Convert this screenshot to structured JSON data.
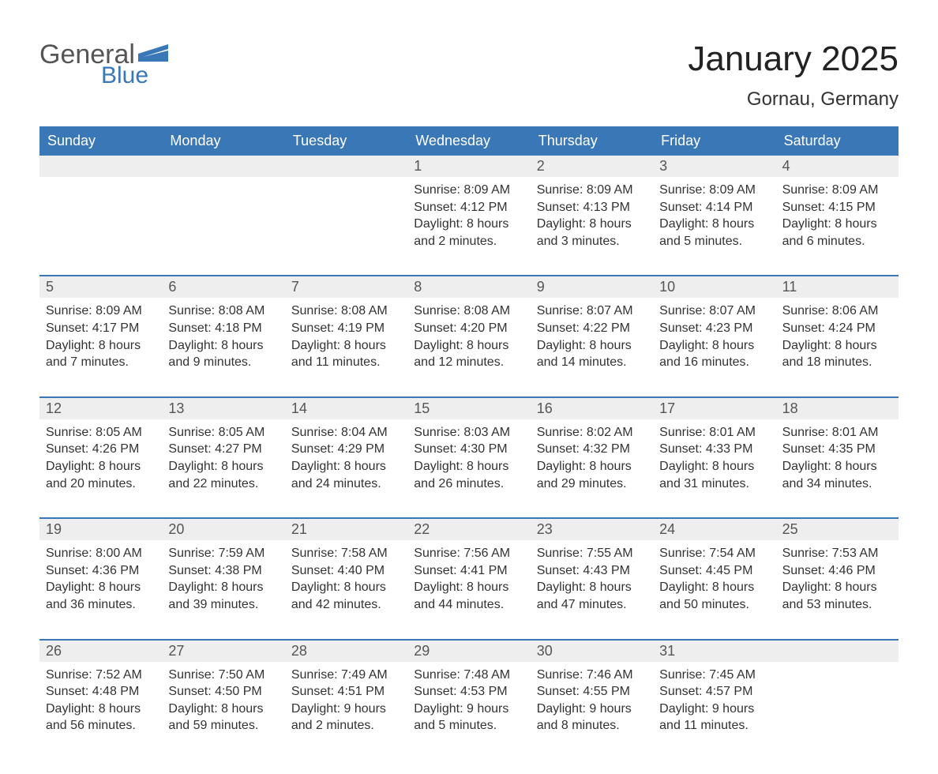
{
  "logo": {
    "word1": "General",
    "word2": "Blue",
    "shape_color": "#3a77b7",
    "text_color_general": "#555555",
    "text_color_blue": "#3a77b7"
  },
  "title": "January 2025",
  "location": "Gornau, Germany",
  "colors": {
    "header_bg": "#3a77b7",
    "header_text": "#ffffff",
    "daynum_bg": "#eeeeee",
    "body_text": "#333333",
    "page_bg": "#ffffff",
    "week_border": "#3a77b7"
  },
  "typography": {
    "title_fontsize": 44,
    "location_fontsize": 24,
    "header_fontsize": 18,
    "daynum_fontsize": 18,
    "body_fontsize": 16
  },
  "days_of_week": [
    "Sunday",
    "Monday",
    "Tuesday",
    "Wednesday",
    "Thursday",
    "Friday",
    "Saturday"
  ],
  "weeks": [
    [
      {
        "empty": true
      },
      {
        "empty": true
      },
      {
        "empty": true
      },
      {
        "num": "1",
        "sunrise": "Sunrise: 8:09 AM",
        "sunset": "Sunset: 4:12 PM",
        "daylight1": "Daylight: 8 hours",
        "daylight2": "and 2 minutes."
      },
      {
        "num": "2",
        "sunrise": "Sunrise: 8:09 AM",
        "sunset": "Sunset: 4:13 PM",
        "daylight1": "Daylight: 8 hours",
        "daylight2": "and 3 minutes."
      },
      {
        "num": "3",
        "sunrise": "Sunrise: 8:09 AM",
        "sunset": "Sunset: 4:14 PM",
        "daylight1": "Daylight: 8 hours",
        "daylight2": "and 5 minutes."
      },
      {
        "num": "4",
        "sunrise": "Sunrise: 8:09 AM",
        "sunset": "Sunset: 4:15 PM",
        "daylight1": "Daylight: 8 hours",
        "daylight2": "and 6 minutes."
      }
    ],
    [
      {
        "num": "5",
        "sunrise": "Sunrise: 8:09 AM",
        "sunset": "Sunset: 4:17 PM",
        "daylight1": "Daylight: 8 hours",
        "daylight2": "and 7 minutes."
      },
      {
        "num": "6",
        "sunrise": "Sunrise: 8:08 AM",
        "sunset": "Sunset: 4:18 PM",
        "daylight1": "Daylight: 8 hours",
        "daylight2": "and 9 minutes."
      },
      {
        "num": "7",
        "sunrise": "Sunrise: 8:08 AM",
        "sunset": "Sunset: 4:19 PM",
        "daylight1": "Daylight: 8 hours",
        "daylight2": "and 11 minutes."
      },
      {
        "num": "8",
        "sunrise": "Sunrise: 8:08 AM",
        "sunset": "Sunset: 4:20 PM",
        "daylight1": "Daylight: 8 hours",
        "daylight2": "and 12 minutes."
      },
      {
        "num": "9",
        "sunrise": "Sunrise: 8:07 AM",
        "sunset": "Sunset: 4:22 PM",
        "daylight1": "Daylight: 8 hours",
        "daylight2": "and 14 minutes."
      },
      {
        "num": "10",
        "sunrise": "Sunrise: 8:07 AM",
        "sunset": "Sunset: 4:23 PM",
        "daylight1": "Daylight: 8 hours",
        "daylight2": "and 16 minutes."
      },
      {
        "num": "11",
        "sunrise": "Sunrise: 8:06 AM",
        "sunset": "Sunset: 4:24 PM",
        "daylight1": "Daylight: 8 hours",
        "daylight2": "and 18 minutes."
      }
    ],
    [
      {
        "num": "12",
        "sunrise": "Sunrise: 8:05 AM",
        "sunset": "Sunset: 4:26 PM",
        "daylight1": "Daylight: 8 hours",
        "daylight2": "and 20 minutes."
      },
      {
        "num": "13",
        "sunrise": "Sunrise: 8:05 AM",
        "sunset": "Sunset: 4:27 PM",
        "daylight1": "Daylight: 8 hours",
        "daylight2": "and 22 minutes."
      },
      {
        "num": "14",
        "sunrise": "Sunrise: 8:04 AM",
        "sunset": "Sunset: 4:29 PM",
        "daylight1": "Daylight: 8 hours",
        "daylight2": "and 24 minutes."
      },
      {
        "num": "15",
        "sunrise": "Sunrise: 8:03 AM",
        "sunset": "Sunset: 4:30 PM",
        "daylight1": "Daylight: 8 hours",
        "daylight2": "and 26 minutes."
      },
      {
        "num": "16",
        "sunrise": "Sunrise: 8:02 AM",
        "sunset": "Sunset: 4:32 PM",
        "daylight1": "Daylight: 8 hours",
        "daylight2": "and 29 minutes."
      },
      {
        "num": "17",
        "sunrise": "Sunrise: 8:01 AM",
        "sunset": "Sunset: 4:33 PM",
        "daylight1": "Daylight: 8 hours",
        "daylight2": "and 31 minutes."
      },
      {
        "num": "18",
        "sunrise": "Sunrise: 8:01 AM",
        "sunset": "Sunset: 4:35 PM",
        "daylight1": "Daylight: 8 hours",
        "daylight2": "and 34 minutes."
      }
    ],
    [
      {
        "num": "19",
        "sunrise": "Sunrise: 8:00 AM",
        "sunset": "Sunset: 4:36 PM",
        "daylight1": "Daylight: 8 hours",
        "daylight2": "and 36 minutes."
      },
      {
        "num": "20",
        "sunrise": "Sunrise: 7:59 AM",
        "sunset": "Sunset: 4:38 PM",
        "daylight1": "Daylight: 8 hours",
        "daylight2": "and 39 minutes."
      },
      {
        "num": "21",
        "sunrise": "Sunrise: 7:58 AM",
        "sunset": "Sunset: 4:40 PM",
        "daylight1": "Daylight: 8 hours",
        "daylight2": "and 42 minutes."
      },
      {
        "num": "22",
        "sunrise": "Sunrise: 7:56 AM",
        "sunset": "Sunset: 4:41 PM",
        "daylight1": "Daylight: 8 hours",
        "daylight2": "and 44 minutes."
      },
      {
        "num": "23",
        "sunrise": "Sunrise: 7:55 AM",
        "sunset": "Sunset: 4:43 PM",
        "daylight1": "Daylight: 8 hours",
        "daylight2": "and 47 minutes."
      },
      {
        "num": "24",
        "sunrise": "Sunrise: 7:54 AM",
        "sunset": "Sunset: 4:45 PM",
        "daylight1": "Daylight: 8 hours",
        "daylight2": "and 50 minutes."
      },
      {
        "num": "25",
        "sunrise": "Sunrise: 7:53 AM",
        "sunset": "Sunset: 4:46 PM",
        "daylight1": "Daylight: 8 hours",
        "daylight2": "and 53 minutes."
      }
    ],
    [
      {
        "num": "26",
        "sunrise": "Sunrise: 7:52 AM",
        "sunset": "Sunset: 4:48 PM",
        "daylight1": "Daylight: 8 hours",
        "daylight2": "and 56 minutes."
      },
      {
        "num": "27",
        "sunrise": "Sunrise: 7:50 AM",
        "sunset": "Sunset: 4:50 PM",
        "daylight1": "Daylight: 8 hours",
        "daylight2": "and 59 minutes."
      },
      {
        "num": "28",
        "sunrise": "Sunrise: 7:49 AM",
        "sunset": "Sunset: 4:51 PM",
        "daylight1": "Daylight: 9 hours",
        "daylight2": "and 2 minutes."
      },
      {
        "num": "29",
        "sunrise": "Sunrise: 7:48 AM",
        "sunset": "Sunset: 4:53 PM",
        "daylight1": "Daylight: 9 hours",
        "daylight2": "and 5 minutes."
      },
      {
        "num": "30",
        "sunrise": "Sunrise: 7:46 AM",
        "sunset": "Sunset: 4:55 PM",
        "daylight1": "Daylight: 9 hours",
        "daylight2": "and 8 minutes."
      },
      {
        "num": "31",
        "sunrise": "Sunrise: 7:45 AM",
        "sunset": "Sunset: 4:57 PM",
        "daylight1": "Daylight: 9 hours",
        "daylight2": "and 11 minutes."
      },
      {
        "empty": true
      }
    ]
  ]
}
